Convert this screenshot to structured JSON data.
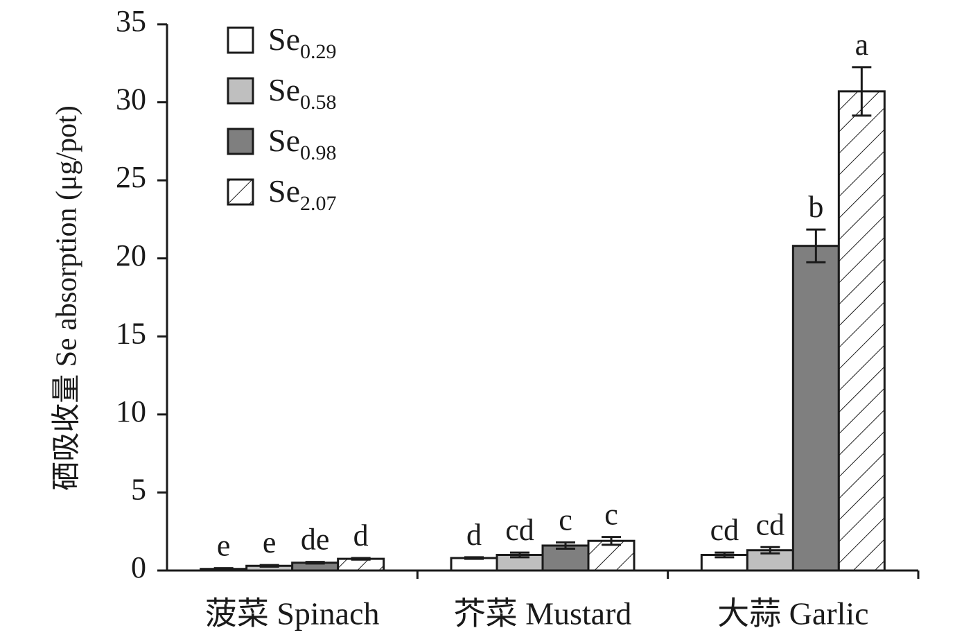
{
  "chart_data": {
    "type": "bar",
    "y_label": "硒吸收量 Se absorption (μg/pot)",
    "categories": [
      "菠菜 Spinach",
      "芥菜 Mustard",
      "大蒜 Garlic"
    ],
    "series": [
      {
        "name": "Se0.29",
        "color": "#ffffff",
        "values": [
          0.1,
          0.8,
          1.0
        ],
        "errors": [
          0.05,
          0.05,
          0.15
        ],
        "significance": [
          "e",
          "d",
          "cd"
        ]
      },
      {
        "name": "Se0.58",
        "color": "#bfbfbf",
        "values": [
          0.3,
          1.0,
          1.3
        ],
        "errors": [
          0.05,
          0.15,
          0.2
        ],
        "significance": [
          "e",
          "cd",
          "cd"
        ]
      },
      {
        "name": "Se0.98",
        "color": "#7f7f7f",
        "values": [
          0.5,
          1.6,
          20.8
        ],
        "errors": [
          0.05,
          0.2,
          1.05
        ],
        "significance": [
          "de",
          "c",
          "b"
        ]
      },
      {
        "name": "Se2.07",
        "color": "#ffffff",
        "pattern": "hatch",
        "values": [
          0.75,
          1.9,
          30.7
        ],
        "errors": [
          0.05,
          0.25,
          1.55
        ],
        "significance": [
          "d",
          "c",
          "a"
        ]
      }
    ],
    "ylim": [
      0,
      35
    ],
    "yticks": [
      0,
      5,
      10,
      15,
      20,
      25,
      30,
      35
    ],
    "grid": false,
    "legend": "top-left"
  }
}
